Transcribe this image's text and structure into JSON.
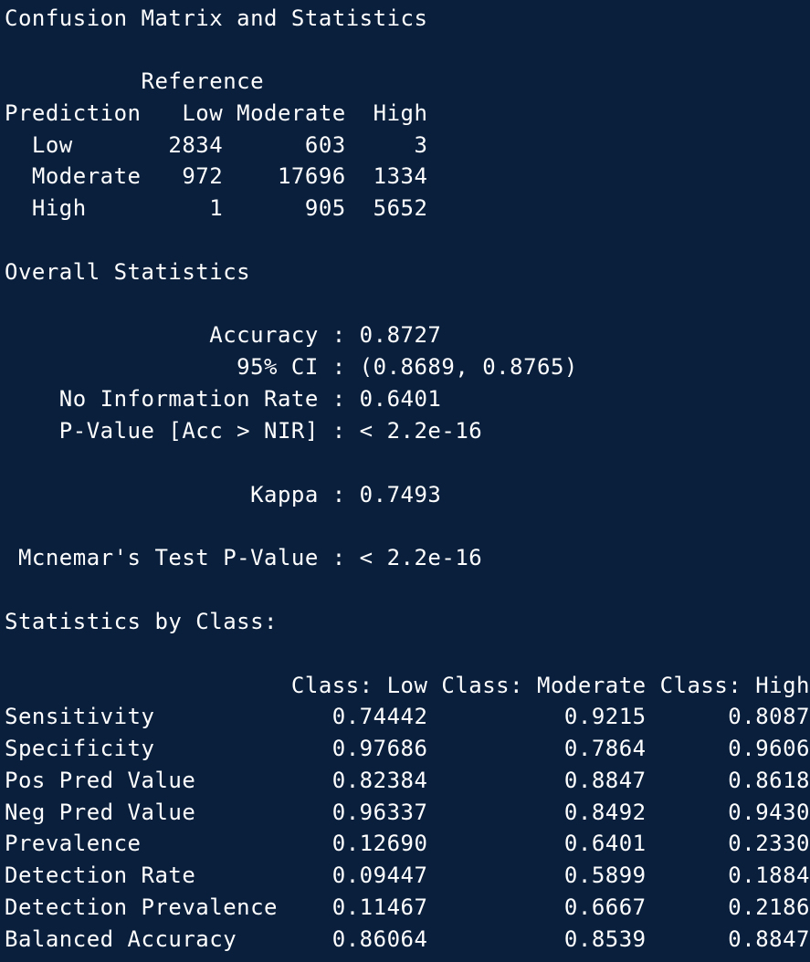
{
  "output": {
    "lines": [
      "Confusion Matrix and Statistics",
      "",
      "          Reference",
      "Prediction   Low Moderate  High",
      "  Low       2834      603     3",
      "  Moderate   972    17696  1334",
      "  High         1      905  5652",
      "",
      "Overall Statistics",
      "",
      "               Accuracy : 0.8727",
      "                 95% CI : (0.8689, 0.8765)",
      "    No Information Rate : 0.6401",
      "    P-Value [Acc > NIR] : < 2.2e-16",
      "",
      "                  Kappa : 0.7493",
      "",
      " Mcnemar's Test P-Value : < 2.2e-16",
      "",
      "Statistics by Class:",
      "",
      "                     Class: Low Class: Moderate Class: High",
      "Sensitivity             0.74442          0.9215      0.8087",
      "Specificity             0.97686          0.7864      0.9606",
      "Pos Pred Value          0.82384          0.8847      0.8618",
      "Neg Pred Value          0.96337          0.8492      0.9430",
      "Prevalence              0.12690          0.6401      0.2330",
      "Detection Rate          0.09447          0.5899      0.1884",
      "Detection Prevalence    0.11467          0.6667      0.2186",
      "Balanced Accuracy       0.86064          0.8539      0.8847"
    ]
  }
}
